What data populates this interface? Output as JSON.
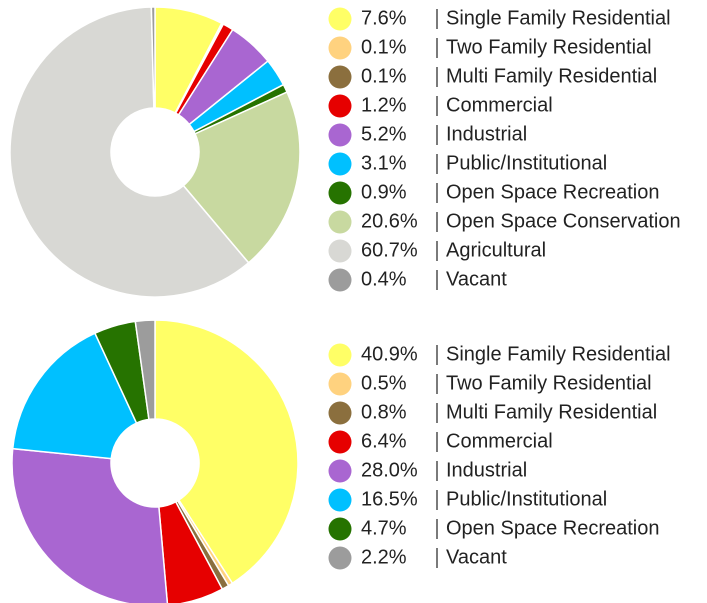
{
  "chart_data": [
    {
      "type": "pie",
      "categories": [
        "Single Family Residential",
        "Two Family Residential",
        "Multi Family Residential",
        "Commercial",
        "Industrial",
        "Public/Institutional",
        "Open Space Recreation",
        "Open Space Conservation",
        "Agricultural",
        "Vacant"
      ],
      "values": [
        7.6,
        0.1,
        0.1,
        1.2,
        5.2,
        3.1,
        0.9,
        20.6,
        60.7,
        0.4
      ],
      "value_labels": [
        "7.6%",
        "0.1%",
        "0.1%",
        "1.2%",
        "5.2%",
        "3.1%",
        "0.9%",
        "20.6%",
        "60.7%",
        "0.4%"
      ],
      "colors": [
        "#ffff66",
        "#ffd27f",
        "#8b6f3e",
        "#e60000",
        "#a966d1",
        "#00c0ff",
        "#267300",
        "#c8d9a0",
        "#d8d8d4",
        "#9c9c9c"
      ]
    },
    {
      "type": "pie",
      "categories": [
        "Single Family Residential",
        "Two Family Residential",
        "Multi Family Residential",
        "Commercial",
        "Industrial",
        "Public/Institutional",
        "Open Space Recreation",
        "Vacant"
      ],
      "values": [
        40.9,
        0.5,
        0.8,
        6.4,
        28.0,
        16.5,
        4.7,
        2.2
      ],
      "value_labels": [
        "40.9%",
        "0.5%",
        "0.8%",
        "6.4%",
        "28.0%",
        "16.5%",
        "4.7%",
        "2.2%"
      ],
      "colors": [
        "#ffff66",
        "#ffd27f",
        "#8b6f3e",
        "#e60000",
        "#a966d1",
        "#00c0ff",
        "#267300",
        "#9c9c9c"
      ]
    }
  ]
}
